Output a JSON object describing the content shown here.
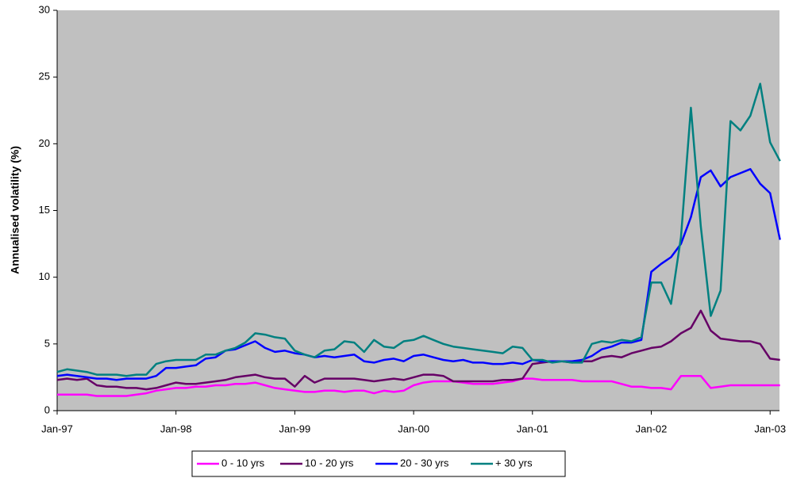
{
  "chart_data": {
    "type": "line",
    "y_label": "Annualised volatility (%)",
    "categories": [
      "Jan-97",
      null,
      null,
      null,
      null,
      null,
      null,
      null,
      null,
      null,
      null,
      null,
      "Jan-98",
      null,
      null,
      null,
      null,
      null,
      null,
      null,
      null,
      null,
      null,
      null,
      "Jan-99",
      null,
      null,
      null,
      null,
      null,
      null,
      null,
      null,
      null,
      null,
      null,
      "Jan-00",
      null,
      null,
      null,
      null,
      null,
      null,
      null,
      null,
      null,
      null,
      null,
      "Jan-01",
      null,
      null,
      null,
      null,
      null,
      null,
      null,
      null,
      null,
      null,
      null,
      "Jan-02",
      null,
      null,
      null,
      null,
      null,
      null,
      null,
      null,
      null,
      null,
      null,
      "Jan-03",
      null
    ],
    "ylim": [
      0,
      30
    ],
    "yticks": [
      0,
      5,
      10,
      15,
      20,
      25,
      30
    ],
    "grid": false,
    "plot_background": "#c0c0c0",
    "legend": "bottom",
    "series": [
      {
        "name": "0 - 10 yrs",
        "color": "#ff00ff",
        "values": [
          1.2,
          1.2,
          1.2,
          1.2,
          1.1,
          1.1,
          1.1,
          1.1,
          1.2,
          1.3,
          1.5,
          1.6,
          1.7,
          1.7,
          1.8,
          1.8,
          1.9,
          1.9,
          2.0,
          2.0,
          2.1,
          1.9,
          1.7,
          1.6,
          1.5,
          1.4,
          1.4,
          1.5,
          1.5,
          1.4,
          1.5,
          1.5,
          1.3,
          1.5,
          1.4,
          1.5,
          1.9,
          2.1,
          2.2,
          2.2,
          2.2,
          2.1,
          2.0,
          2.0,
          2.0,
          2.1,
          2.2,
          2.4,
          2.4,
          2.3,
          2.3,
          2.3,
          2.3,
          2.2,
          2.2,
          2.2,
          2.2,
          2.0,
          1.8,
          1.8,
          1.7,
          1.7,
          1.6,
          2.6,
          2.6,
          2.6,
          1.7,
          1.8,
          1.9,
          1.9,
          1.9,
          1.9,
          1.9,
          1.9
        ]
      },
      {
        "name": "10 - 20 yrs",
        "color": "#660066",
        "values": [
          2.3,
          2.4,
          2.3,
          2.4,
          1.9,
          1.8,
          1.8,
          1.7,
          1.7,
          1.6,
          1.7,
          1.9,
          2.1,
          2.0,
          2.0,
          2.1,
          2.2,
          2.3,
          2.5,
          2.6,
          2.7,
          2.5,
          2.4,
          2.4,
          1.8,
          2.6,
          2.1,
          2.4,
          2.4,
          2.4,
          2.4,
          2.3,
          2.2,
          2.3,
          2.4,
          2.3,
          2.5,
          2.7,
          2.7,
          2.6,
          2.2,
          2.2,
          2.2,
          2.2,
          2.2,
          2.3,
          2.3,
          2.4,
          3.5,
          3.6,
          3.7,
          3.7,
          3.6,
          3.7,
          3.7,
          4.0,
          4.1,
          4.0,
          4.3,
          4.5,
          4.7,
          4.8,
          5.2,
          5.8,
          6.2,
          7.5,
          6.0,
          5.4,
          5.3,
          5.2,
          5.2,
          5.0,
          3.9,
          3.8
        ]
      },
      {
        "name": "20 - 30 yrs",
        "color": "#0000ff",
        "values": [
          2.6,
          2.7,
          2.6,
          2.5,
          2.4,
          2.4,
          2.3,
          2.4,
          2.4,
          2.4,
          2.6,
          3.2,
          3.2,
          3.3,
          3.4,
          3.9,
          4.0,
          4.5,
          4.6,
          4.9,
          5.2,
          4.7,
          4.4,
          4.5,
          4.3,
          4.2,
          4.0,
          4.1,
          4.0,
          4.1,
          4.2,
          3.7,
          3.6,
          3.8,
          3.9,
          3.7,
          4.1,
          4.2,
          4.0,
          3.8,
          3.7,
          3.8,
          3.6,
          3.6,
          3.5,
          3.5,
          3.6,
          3.5,
          3.8,
          3.7,
          3.7,
          3.7,
          3.7,
          3.8,
          4.1,
          4.6,
          4.8,
          5.1,
          5.1,
          5.3,
          10.4,
          11.0,
          11.5,
          12.5,
          14.5,
          17.5,
          18.0,
          16.8,
          17.5,
          17.8,
          18.1,
          17.0,
          16.3,
          12.8
        ]
      },
      {
        "name": "+ 30 yrs",
        "color": "#008080",
        "values": [
          2.9,
          3.1,
          3.0,
          2.9,
          2.7,
          2.7,
          2.7,
          2.6,
          2.7,
          2.7,
          3.5,
          3.7,
          3.8,
          3.8,
          3.8,
          4.2,
          4.2,
          4.5,
          4.7,
          5.1,
          5.8,
          5.7,
          5.5,
          5.4,
          4.5,
          4.2,
          4.0,
          4.5,
          4.6,
          5.2,
          5.1,
          4.4,
          5.3,
          4.8,
          4.7,
          5.2,
          5.3,
          5.6,
          5.3,
          5.0,
          4.8,
          4.7,
          4.6,
          4.5,
          4.4,
          4.3,
          4.8,
          4.7,
          3.8,
          3.8,
          3.6,
          3.7,
          3.6,
          3.6,
          5.0,
          5.2,
          5.1,
          5.3,
          5.2,
          5.5,
          9.6,
          9.6,
          8.0,
          13.0,
          22.7,
          13.8,
          7.1,
          9.0,
          21.7,
          21.0,
          22.1,
          24.5,
          20.1,
          18.7
        ]
      }
    ]
  }
}
